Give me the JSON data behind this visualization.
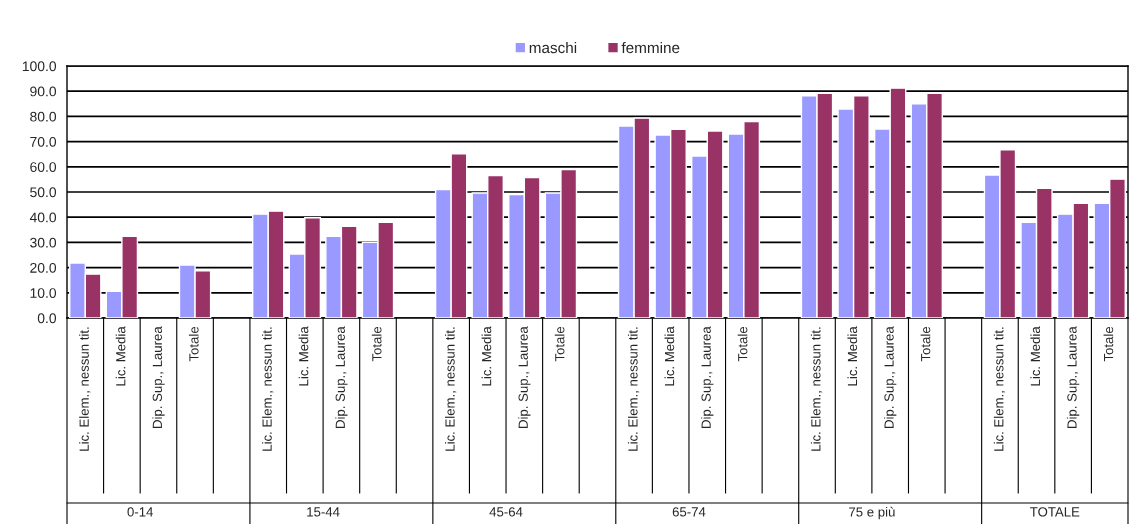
{
  "chart_data": {
    "type": "bar",
    "categories": [
      "Lic. Elem., nessun tit.",
      "Lic. Media",
      "Dip. Sup., Laurea",
      "Totale",
      null,
      "Lic. Elem., nessun tit.",
      "Lic. Media",
      "Dip. Sup., Laurea",
      "Totale",
      null,
      "Lic. Elem., nessun tit.",
      "Lic. Media",
      "Dip. Sup., Laurea",
      "Totale",
      null,
      "Lic. Elem., nessun tit.",
      "Lic. Media",
      "Dip. Sup., Laurea",
      "Totale",
      null,
      "Lic. Elem., nessun tit.",
      "Lic. Media",
      "Dip. Sup., Laurea",
      "Totale",
      null,
      "Lic. Elem., nessun tit.",
      "Lic. Media",
      "Dip. Sup., Laurea",
      "Totale"
    ],
    "series": [
      {
        "name": "maschi",
        "color": "#9999ff",
        "values": [
          21.8,
          10.6,
          null,
          21.0,
          null,
          41.2,
          25.4,
          32.4,
          30.0,
          null,
          51.0,
          49.6,
          49.0,
          49.6,
          null,
          76.2,
          72.6,
          64.3,
          73.0,
          null,
          88.2,
          82.9,
          75.0,
          85.0,
          null,
          56.7,
          38.0,
          41.2,
          45.5
        ]
      },
      {
        "name": "femmine",
        "color": "#993366",
        "values": [
          17.4,
          32.4,
          null,
          18.7,
          null,
          42.4,
          39.8,
          36.4,
          38.0,
          null,
          65.2,
          56.5,
          55.7,
          58.9,
          null,
          79.3,
          74.9,
          74.2,
          78.0,
          null,
          89.2,
          88.2,
          91.2,
          89.2,
          null,
          66.7,
          51.5,
          45.5,
          55.1
        ]
      }
    ],
    "annotations": [
      "0-14",
      "15-44",
      "45-64",
      "65-74",
      "75 e più",
      "TOTALE"
    ],
    "ylim": [
      0,
      100
    ],
    "yticks": [
      {
        "value": 0,
        "label": "0.0"
      },
      {
        "value": 10,
        "label": "10.0"
      },
      {
        "value": 20,
        "label": "20.0"
      },
      {
        "value": 30,
        "label": "30.0"
      },
      {
        "value": 40,
        "label": "40.0"
      },
      {
        "value": 50,
        "label": "50.0"
      },
      {
        "value": 60,
        "label": "60.0"
      },
      {
        "value": 70,
        "label": "70.0"
      },
      {
        "value": 80,
        "label": "80.0"
      },
      {
        "value": 90,
        "label": "90.0"
      },
      {
        "value": 100,
        "label": "100.0"
      }
    ],
    "grid": "y",
    "legend": "top"
  }
}
